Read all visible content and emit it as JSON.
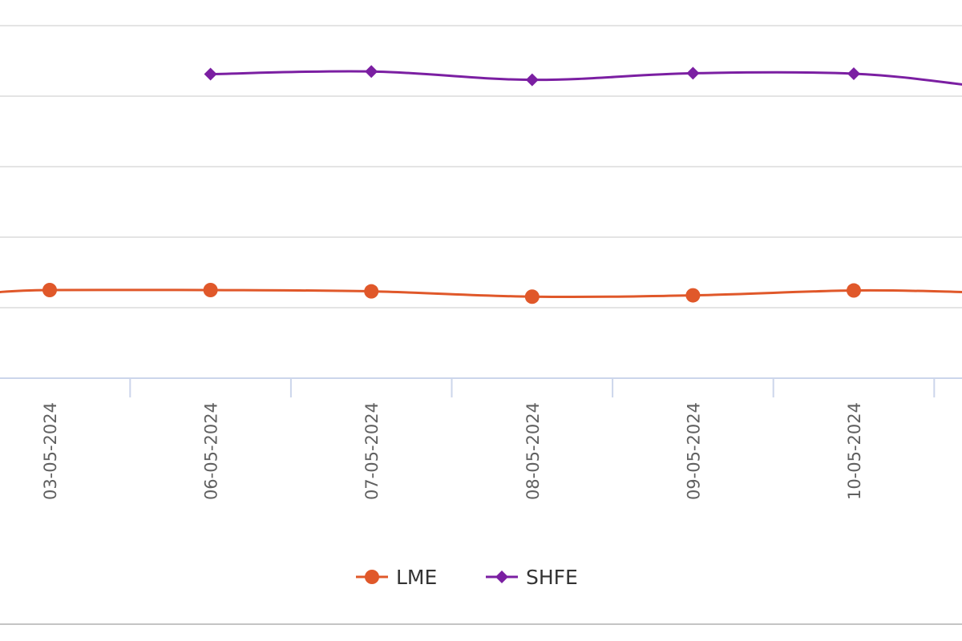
{
  "chart_data": {
    "type": "line",
    "categories": [
      "03-05-2024",
      "06-05-2024",
      "07-05-2024",
      "08-05-2024",
      "09-05-2024",
      "10-05-2024"
    ],
    "series": [
      {
        "name": "LME",
        "color": "#e0582a",
        "marker": "circle",
        "values": [
          40.0,
          40.0,
          39.7,
          38.5,
          38.8,
          39.9
        ]
      },
      {
        "name": "SHFE",
        "color": "#7b1fa2",
        "marker": "diamond",
        "values": [
          null,
          89.0,
          89.6,
          87.7,
          89.2,
          89.1
        ]
      }
    ],
    "title": "",
    "xlabel": "",
    "ylabel": "",
    "ylim": [
      20,
      100
    ],
    "grid": true,
    "legend": "bottom-center"
  }
}
